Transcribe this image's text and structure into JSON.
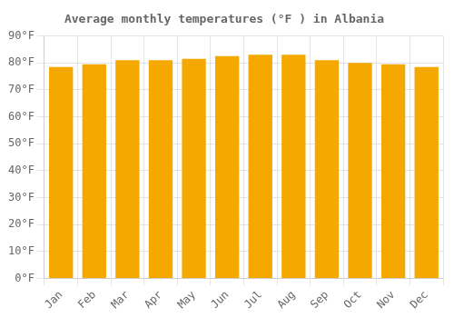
{
  "chart_data": {
    "type": "bar",
    "title": "Average monthly temperatures (°F ) in Albania",
    "categories": [
      "Jan",
      "Feb",
      "Mar",
      "Apr",
      "May",
      "Jun",
      "Jul",
      "Aug",
      "Sep",
      "Oct",
      "Nov",
      "Dec"
    ],
    "values": [
      78.5,
      79.5,
      81.0,
      81.0,
      81.5,
      82.5,
      83.0,
      83.0,
      81.0,
      80.0,
      79.5,
      78.5
    ],
    "color": "#F5A800",
    "ylim": [
      0,
      90
    ],
    "yticks": [
      {
        "value": 0,
        "label": "0°F"
      },
      {
        "value": 10,
        "label": "10°F"
      },
      {
        "value": 20,
        "label": "20°F"
      },
      {
        "value": 30,
        "label": "30°F"
      },
      {
        "value": 40,
        "label": "40°F"
      },
      {
        "value": 50,
        "label": "50°F"
      },
      {
        "value": 60,
        "label": "60°F"
      },
      {
        "value": 70,
        "label": "70°F"
      },
      {
        "value": 80,
        "label": "80°F"
      },
      {
        "value": 90,
        "label": "90°F"
      }
    ],
    "grid": true
  }
}
